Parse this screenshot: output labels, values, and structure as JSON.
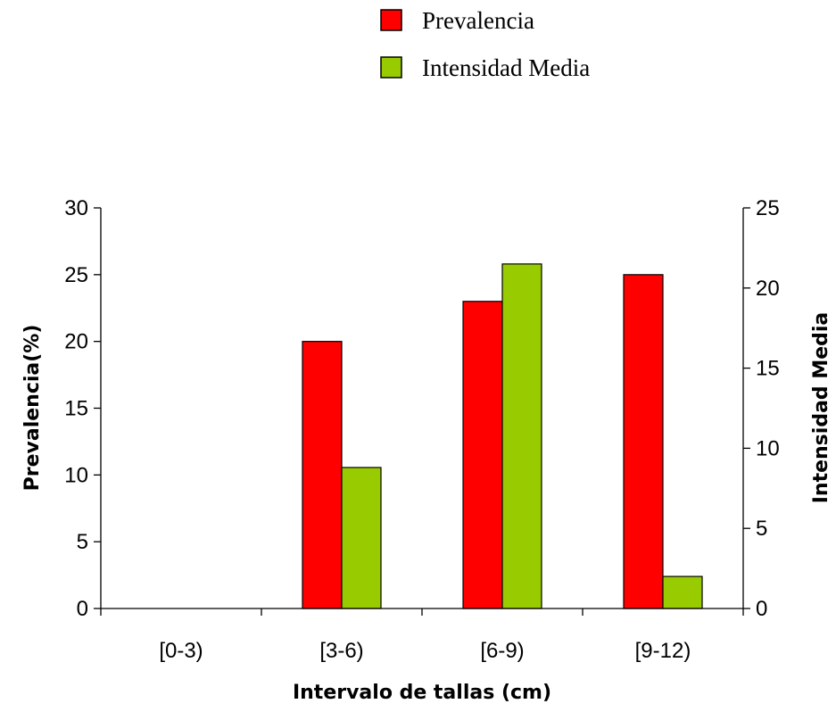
{
  "chart_data": {
    "type": "bar",
    "categories": [
      "[0-3)",
      "[3-6)",
      "[6-9)",
      "[9-12)"
    ],
    "series": [
      {
        "name": "Prevalencia",
        "axis": "left",
        "color": "#ff0000",
        "values": [
          0,
          20,
          23,
          25
        ]
      },
      {
        "name": "Intensidad Media",
        "axis": "right",
        "color": "#99cc00",
        "values": [
          0,
          8.8,
          21.5,
          2
        ]
      }
    ],
    "xlabel": "Intervalo de tallas (cm)",
    "ylabel": "Prevalencia(%)",
    "y2label": "Intensidad Media",
    "ylim": [
      0,
      30
    ],
    "y2lim": [
      0,
      25
    ],
    "yticks": [
      "0",
      "5",
      "10",
      "15",
      "20",
      "25",
      "30"
    ],
    "y2ticks": [
      "0",
      "5",
      "10",
      "15",
      "20",
      "25"
    ],
    "grid": false,
    "legend_position": "top"
  }
}
